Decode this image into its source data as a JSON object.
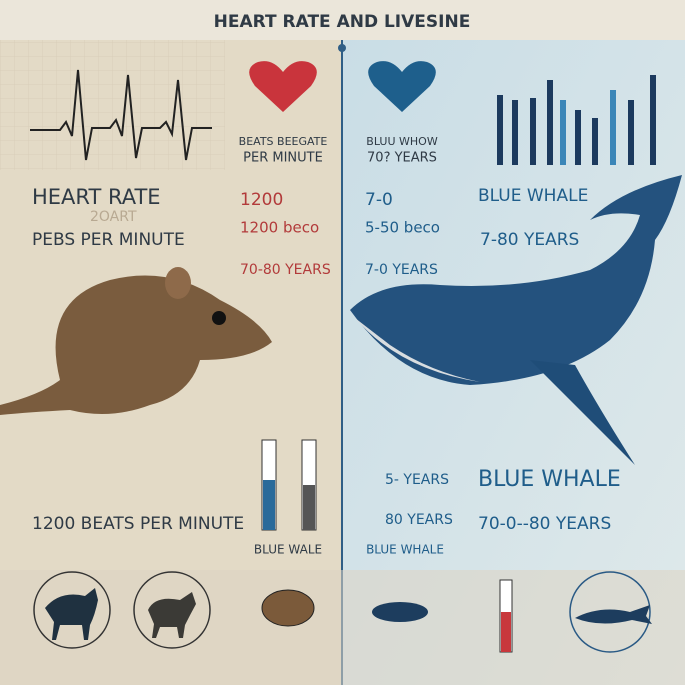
{
  "header": {
    "title": "HEART RATE AND LIVESINE"
  },
  "left": {
    "heading": "HEART RATE",
    "ghost": "2OART",
    "subheading": "PEBS PER MINUTE",
    "footer": "1200 BEATS PER MINUTE"
  },
  "center_left": {
    "caption": [
      "BEATS BEEGATE",
      "PER MINUTE"
    ],
    "stats": [
      "1200",
      "1200 beco",
      "70-80 YEARS"
    ],
    "label": "BLUE WALE"
  },
  "center_right": {
    "caption": [
      "BLUU WHOW",
      "70? YEARS"
    ],
    "stats": [
      "7-0",
      "5-50 beco",
      "7-0 YEARS"
    ],
    "lower": [
      "5- YEARS",
      "80 YEARS"
    ],
    "label": "BLUE WHALE"
  },
  "right": {
    "heading": "BLUE WHALE",
    "lifespan": "7-80 YEARS",
    "footer_heading": "BLUE WHALE",
    "footer_lifespan": "70-0--80 YEARS"
  }
}
